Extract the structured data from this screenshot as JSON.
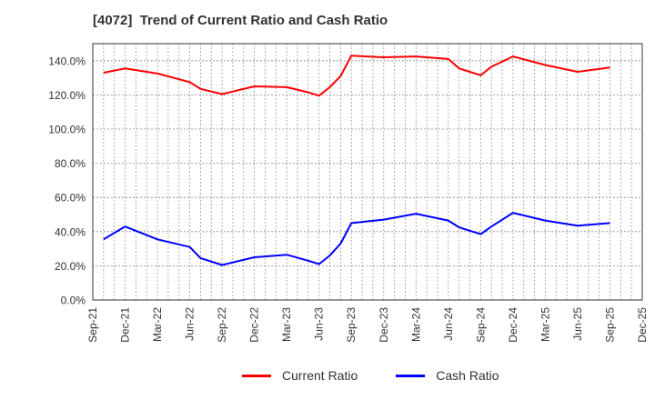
{
  "chart_data": {
    "type": "line",
    "title": "[4072]  Trend of Current Ratio and Cash Ratio",
    "xlabel": "",
    "ylabel": "",
    "ylim": [
      0,
      150
    ],
    "yticks": [
      "0.0%",
      "20.0%",
      "40.0%",
      "60.0%",
      "80.0%",
      "100.0%",
      "120.0%",
      "140.0%"
    ],
    "xticks": [
      "Sep-21",
      "Dec-21",
      "Mar-22",
      "Jun-22",
      "Sep-22",
      "Dec-22",
      "Mar-23",
      "Jun-23",
      "Sep-23",
      "Dec-23",
      "Mar-24",
      "Jun-24",
      "Sep-24",
      "Dec-24",
      "Mar-25",
      "Jun-25",
      "Sep-25",
      "Dec-25"
    ],
    "grid": true,
    "legend_position": "bottom",
    "x": [
      "Oct-21",
      "Dec-21",
      "Mar-22",
      "Jun-22",
      "Jul-22",
      "Sep-22",
      "Dec-22",
      "Mar-23",
      "May-23",
      "Jun-23",
      "Jul-23",
      "Aug-23",
      "Sep-23",
      "Dec-23",
      "Mar-24",
      "Jun-24",
      "Jul-24",
      "Sep-24",
      "Oct-24",
      "Dec-24",
      "Mar-25",
      "Jun-25",
      "Sep-25"
    ],
    "x_months": [
      1,
      3,
      6,
      9,
      10,
      12,
      15,
      18,
      20,
      21,
      22,
      23,
      24,
      27,
      30,
      33,
      34,
      36,
      37,
      39,
      42,
      45,
      48
    ],
    "series": [
      {
        "name": "Current Ratio",
        "color": "#ff0000",
        "values": [
          133.0,
          135.5,
          132.5,
          127.5,
          123.5,
          120.5,
          125.0,
          124.5,
          121.5,
          119.5,
          124.5,
          131.0,
          143.0,
          142.0,
          142.5,
          141.0,
          135.5,
          131.5,
          136.5,
          142.5,
          137.5,
          133.5,
          136.0
        ]
      },
      {
        "name": "Cash Ratio",
        "color": "#0000ff",
        "values": [
          35.5,
          43.0,
          35.5,
          31.0,
          24.5,
          20.5,
          25.0,
          26.5,
          23.0,
          21.0,
          26.0,
          33.0,
          45.0,
          47.0,
          50.5,
          46.5,
          42.5,
          38.5,
          43.0,
          51.0,
          46.5,
          43.5,
          45.0
        ]
      }
    ]
  },
  "legend": {
    "items": [
      {
        "label": "Current Ratio",
        "color": "#ff0000"
      },
      {
        "label": "Cash Ratio",
        "color": "#0000ff"
      }
    ]
  }
}
